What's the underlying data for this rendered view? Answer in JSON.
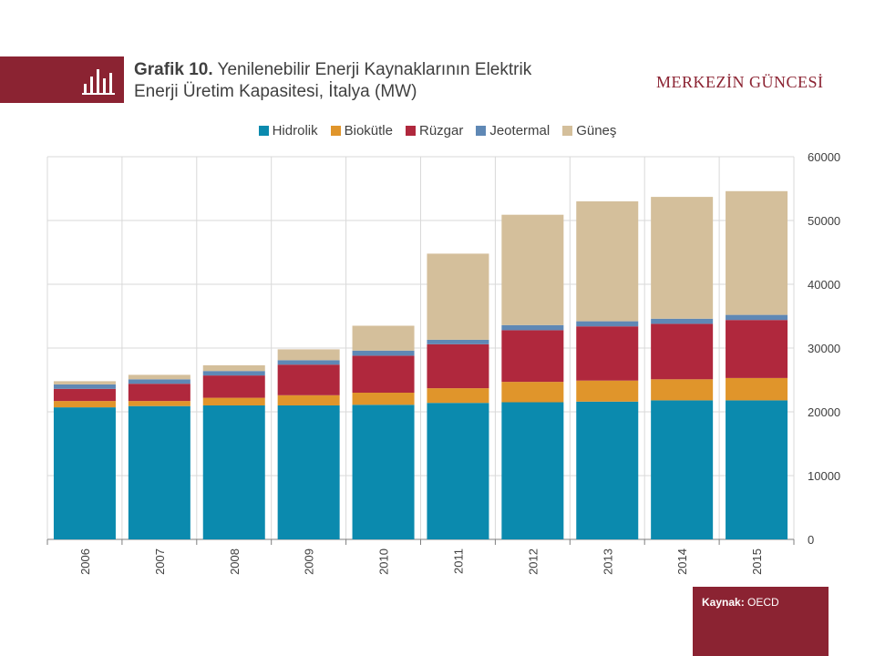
{
  "header": {
    "title_bold": "Grafik 10.",
    "title_line1": "Yenilenebilir Enerji Kaynaklarının Elektrik",
    "title_line2": "Enerji Üretim Kapasitesi, İtalya (MW)",
    "brand": "MERKEZİN GÜNCESİ",
    "icon": "bar-chart-icon"
  },
  "source": {
    "label": "Kaynak:",
    "value": "OECD"
  },
  "colors": {
    "accent": "#8b2332",
    "Hidrolik": "#0b8aae",
    "Biokütle": "#e0952b",
    "Rüzgar": "#b0283d",
    "Jeotermal": "#5f88b5",
    "Güneş": "#d4bf9b",
    "grid": "#d9d9d9"
  },
  "chart_data": {
    "type": "bar",
    "stacked": true,
    "categories": [
      "2006",
      "2007",
      "2008",
      "2009",
      "2010",
      "2011",
      "2012",
      "2013",
      "2014",
      "2015"
    ],
    "series": [
      {
        "name": "Hidrolik",
        "values": [
          20700,
          20900,
          21000,
          21000,
          21100,
          21400,
          21500,
          21600,
          21800,
          21800
        ]
      },
      {
        "name": "Biokütle",
        "values": [
          1000,
          800,
          1200,
          1600,
          1900,
          2300,
          3200,
          3300,
          3300,
          3500
        ]
      },
      {
        "name": "Rüzgar",
        "values": [
          1900,
          2700,
          3500,
          4800,
          5800,
          6900,
          8100,
          8500,
          8700,
          9100
        ]
      },
      {
        "name": "Jeotermal",
        "values": [
          700,
          700,
          700,
          700,
          800,
          700,
          800,
          800,
          800,
          800
        ]
      },
      {
        "name": "Güneş",
        "values": [
          500,
          700,
          900,
          1700,
          3900,
          13500,
          17300,
          18800,
          19100,
          19400
        ]
      }
    ],
    "yticks": [
      "0",
      "10000",
      "20000",
      "30000",
      "40000",
      "50000",
      "60000"
    ],
    "ylim": [
      0,
      60000
    ],
    "grid": true,
    "legend_position": "top",
    "y_axis_position": "right",
    "xlabel": "",
    "ylabel": ""
  }
}
